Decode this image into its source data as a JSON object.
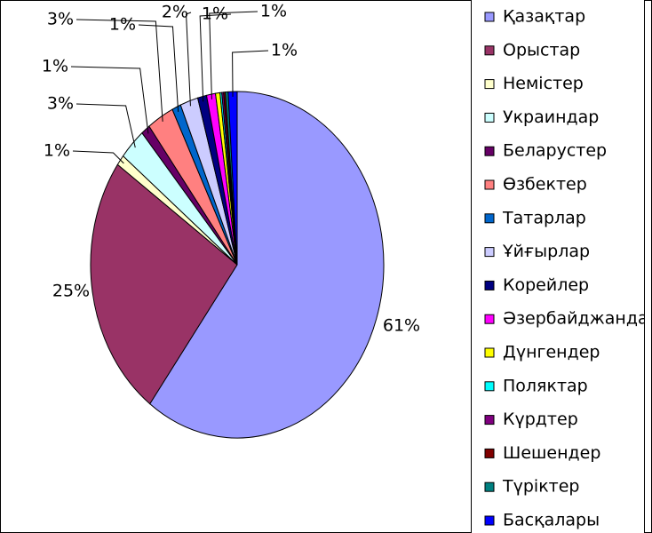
{
  "chart_data": {
    "type": "pie",
    "categories": [
      "Қазақтар",
      "Орыстар",
      "Немістер",
      "Украиндар",
      "Беларустер",
      "Өзбектер",
      "Татарлар",
      "Ұйғырлар",
      "Корейлер",
      "Әзербайджандар",
      "Дүнгендер",
      "Поляктар",
      "Күрдтер",
      "Шешендер",
      "Түріктер",
      "Басқалары"
    ],
    "values": [
      61,
      25,
      1,
      3,
      1,
      3,
      1,
      2,
      1,
      1,
      0.5,
      0.2,
      0.2,
      0.2,
      0.3,
      1
    ],
    "value_labels": [
      "61%",
      "25%",
      "1%",
      "3%",
      "1%",
      "3%",
      "1%",
      "2%",
      "1%",
      "1%",
      null,
      null,
      null,
      null,
      null,
      "1%"
    ],
    "colors": [
      "#9999ff",
      "#993366",
      "#ffffcc",
      "#ccffff",
      "#660066",
      "#ff8080",
      "#0066cc",
      "#ccccff",
      "#000080",
      "#ff00ff",
      "#ffff00",
      "#00ffff",
      "#800080",
      "#800000",
      "#008080",
      "#0000ff"
    ],
    "legend": "right"
  }
}
